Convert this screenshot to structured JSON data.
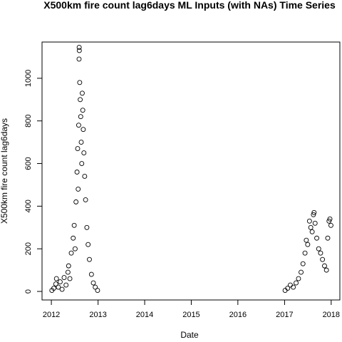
{
  "chart_data": {
    "type": "scatter",
    "title": "X500km fire count lag6days ML Inputs (with NAs) Time Series",
    "xlabel": "Date",
    "ylabel": "X500km fire count lag6days",
    "x_ticks": [
      "2012",
      "2013",
      "2014",
      "2015",
      "2016",
      "2017",
      "2018"
    ],
    "y_ticks": [
      0,
      200,
      400,
      600,
      800,
      1000
    ],
    "xlim": [
      "2011-10-20",
      "2018-03-10"
    ],
    "ylim": [
      -40,
      1170
    ],
    "grid": false,
    "legend": "none",
    "marker": "open-circle",
    "series": [
      {
        "points": [
          [
            "2012-01-05",
            5
          ],
          [
            "2012-01-20",
            15
          ],
          [
            "2012-02-05",
            35
          ],
          [
            "2012-02-10",
            60
          ],
          [
            "2012-02-25",
            20
          ],
          [
            "2012-03-10",
            45
          ],
          [
            "2012-03-25",
            10
          ],
          [
            "2012-04-10",
            65
          ],
          [
            "2012-04-25",
            30
          ],
          [
            "2012-05-10",
            90
          ],
          [
            "2012-05-15",
            120
          ],
          [
            "2012-05-25",
            60
          ],
          [
            "2012-06-05",
            180
          ],
          [
            "2012-06-20",
            250
          ],
          [
            "2012-06-28",
            310
          ],
          [
            "2012-07-05",
            200
          ],
          [
            "2012-07-12",
            420
          ],
          [
            "2012-07-20",
            560
          ],
          [
            "2012-07-25",
            670
          ],
          [
            "2012-07-29",
            480
          ],
          [
            "2012-08-02",
            780
          ],
          [
            "2012-08-05",
            1090
          ],
          [
            "2012-08-06",
            1145
          ],
          [
            "2012-08-07",
            1130
          ],
          [
            "2012-08-10",
            980
          ],
          [
            "2012-08-14",
            900
          ],
          [
            "2012-08-18",
            820
          ],
          [
            "2012-08-22",
            700
          ],
          [
            "2012-08-26",
            600
          ],
          [
            "2012-08-30",
            930
          ],
          [
            "2012-09-03",
            850
          ],
          [
            "2012-09-07",
            760
          ],
          [
            "2012-09-12",
            650
          ],
          [
            "2012-09-18",
            540
          ],
          [
            "2012-09-25",
            430
          ],
          [
            "2012-10-05",
            300
          ],
          [
            "2012-10-15",
            220
          ],
          [
            "2012-10-25",
            150
          ],
          [
            "2012-11-10",
            80
          ],
          [
            "2012-11-25",
            40
          ],
          [
            "2012-12-10",
            20
          ],
          [
            "2012-12-28",
            5
          ],
          [
            "2017-01-05",
            5
          ],
          [
            "2017-01-25",
            15
          ],
          [
            "2017-02-15",
            30
          ],
          [
            "2017-03-10",
            20
          ],
          [
            "2017-04-01",
            40
          ],
          [
            "2017-04-20",
            60
          ],
          [
            "2017-05-10",
            90
          ],
          [
            "2017-05-25",
            130
          ],
          [
            "2017-06-10",
            180
          ],
          [
            "2017-06-20",
            240
          ],
          [
            "2017-07-01",
            220
          ],
          [
            "2017-07-15",
            330
          ],
          [
            "2017-07-25",
            300
          ],
          [
            "2017-08-05",
            280
          ],
          [
            "2017-08-15",
            360
          ],
          [
            "2017-08-20",
            370
          ],
          [
            "2017-08-28",
            320
          ],
          [
            "2017-09-10",
            250
          ],
          [
            "2017-09-25",
            200
          ],
          [
            "2017-10-10",
            180
          ],
          [
            "2017-10-25",
            150
          ],
          [
            "2017-11-10",
            120
          ],
          [
            "2017-11-25",
            100
          ],
          [
            "2017-12-05",
            250
          ],
          [
            "2017-12-15",
            330
          ],
          [
            "2017-12-22",
            340
          ],
          [
            "2017-12-30",
            310
          ]
        ]
      }
    ]
  }
}
